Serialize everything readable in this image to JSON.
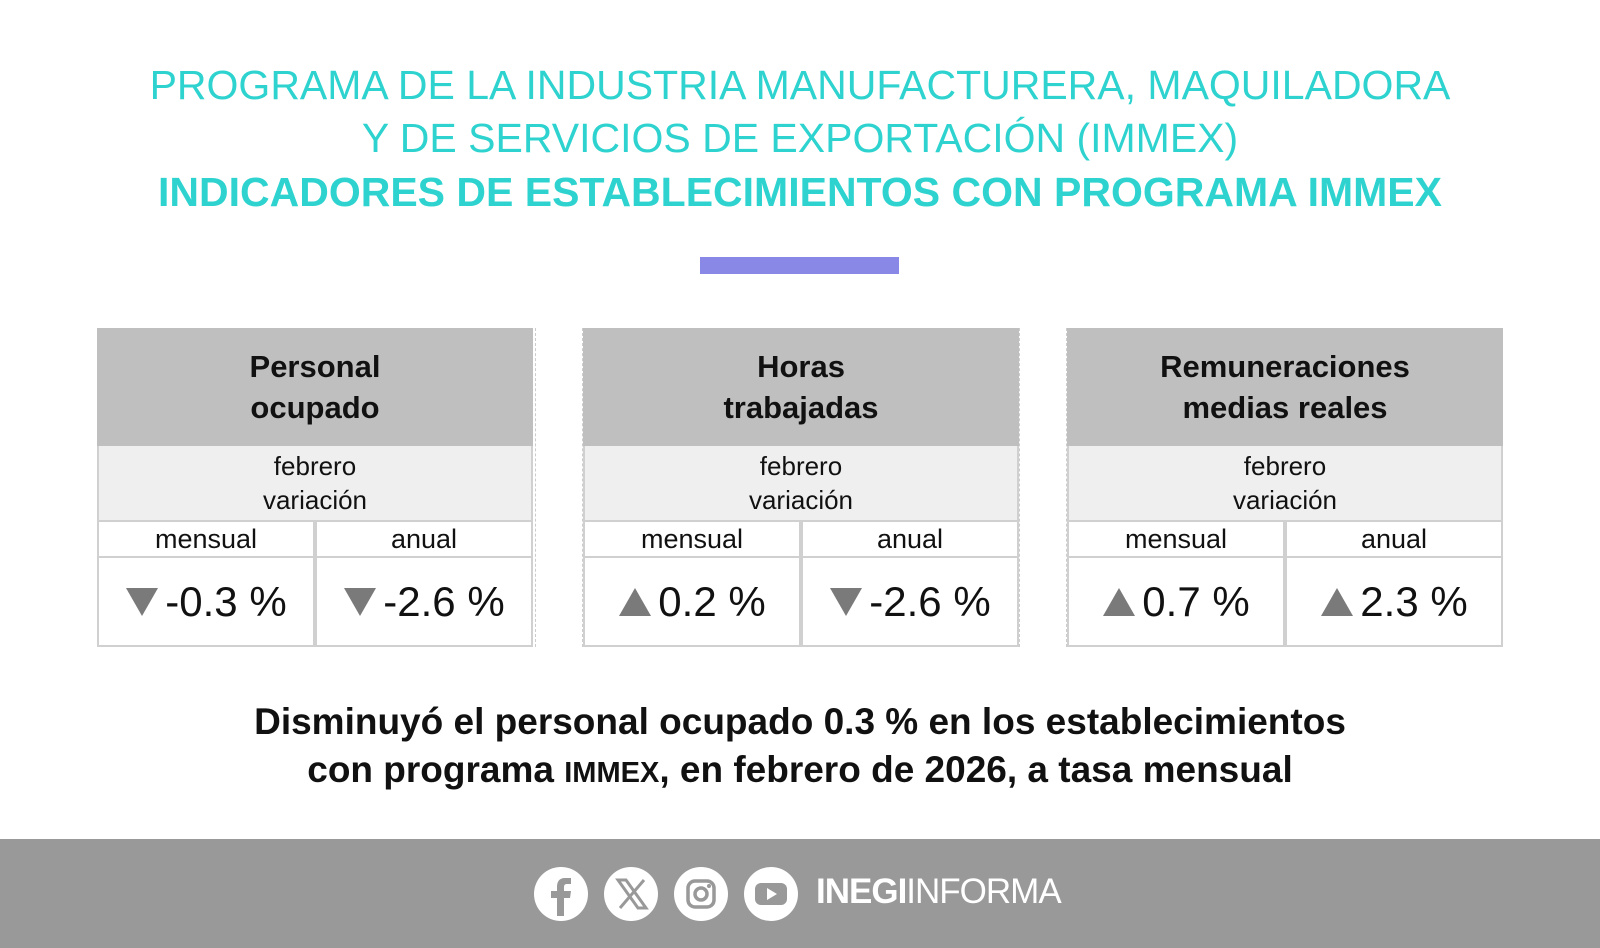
{
  "header": {
    "line1": "PROGRAMA DE LA INDUSTRIA MANUFACTURERA, MAQUILADORA",
    "line2": "Y DE SERVICIOS DE EXPORTACIÓN (IMMEX)",
    "subtitle": "INDICADORES DE ESTABLECIMIENTOS CON PROGRAMA IMMEX"
  },
  "table": {
    "groups": [
      {
        "title_line1": "Personal",
        "title_line2": "ocupado",
        "period": "febrero",
        "label": "variación",
        "columns": [
          {
            "name": "mensual",
            "value": "-0.3 %",
            "direction": "down"
          },
          {
            "name": "anual",
            "value": "-2.6 %",
            "direction": "down"
          }
        ]
      },
      {
        "title_line1": "Horas",
        "title_line2": "trabajadas",
        "period": "febrero",
        "label": "variación",
        "columns": [
          {
            "name": "mensual",
            "value": "0.2 %",
            "direction": "up"
          },
          {
            "name": "anual",
            "value": "-2.6 %",
            "direction": "down"
          }
        ]
      },
      {
        "title_line1": "Remuneraciones",
        "title_line2": "medias reales",
        "period": "febrero",
        "label": "variación",
        "columns": [
          {
            "name": "mensual",
            "value": "0.7 %",
            "direction": "up"
          },
          {
            "name": "anual",
            "value": "2.3 %",
            "direction": "up"
          }
        ]
      }
    ]
  },
  "summary": {
    "line1": "Disminuyó el personal ocupado 0.3 % en los establecimientos",
    "line2_start": "con programa ",
    "line2_acronym": "IMMEX",
    "line2_end": ", en febrero de 2026, a tasa mensual"
  },
  "footer": {
    "brand_bold": "INEGI",
    "brand_light": "INFORMA"
  }
}
